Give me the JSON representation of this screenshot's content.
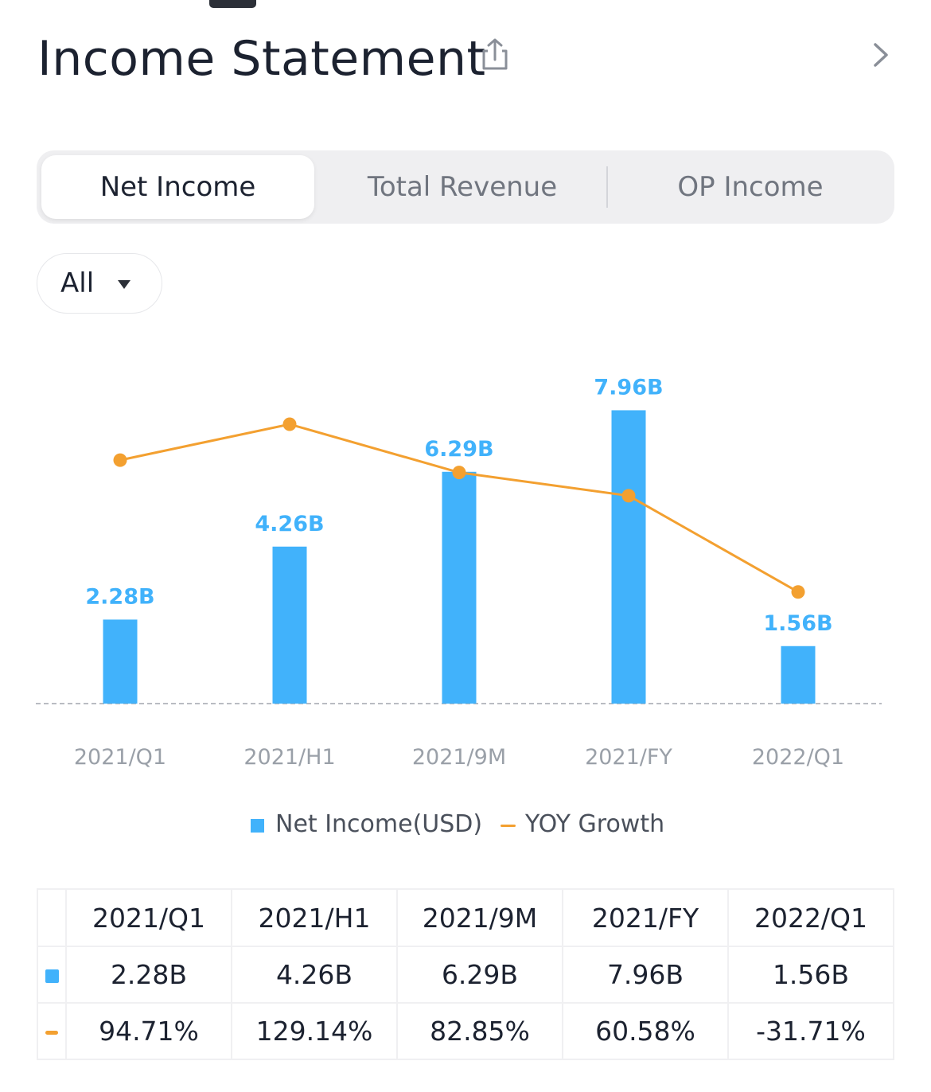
{
  "header": {
    "title": "Income Statement"
  },
  "tabs": [
    {
      "label": "Net Income",
      "active": true
    },
    {
      "label": "Total Revenue",
      "active": false
    },
    {
      "label": "OP Income",
      "active": false
    }
  ],
  "filter": {
    "label": "All"
  },
  "colors": {
    "bar": "#41b2fb",
    "line": "#f3a030",
    "positive": "#3dbb63",
    "negative": "#e5504f"
  },
  "chart_data": {
    "type": "bar",
    "categories": [
      "2021/Q1",
      "2021/H1",
      "2021/9M",
      "2021/FY",
      "2022/Q1"
    ],
    "series": [
      {
        "name": "Net Income(USD)",
        "type": "bar",
        "values": [
          2.28,
          4.26,
          6.29,
          7.96,
          1.56
        ],
        "labels": [
          "2.28B",
          "4.26B",
          "6.29B",
          "7.96B",
          "1.56B"
        ]
      },
      {
        "name": "YOY Growth",
        "type": "line",
        "values": [
          94.71,
          129.14,
          82.85,
          60.58,
          -31.71
        ]
      }
    ],
    "grid": false
  },
  "legend": {
    "bar_label": "Net Income(USD)",
    "line_label": "YOY Growth"
  },
  "table": {
    "columns": [
      "2021/Q1",
      "2021/H1",
      "2021/9M",
      "2021/FY",
      "2022/Q1"
    ],
    "net_income": [
      "2.28B",
      "4.26B",
      "6.29B",
      "7.96B",
      "1.56B"
    ],
    "yoy_growth": [
      "94.71%",
      "129.14%",
      "82.85%",
      "60.58%",
      "-31.71%"
    ]
  }
}
